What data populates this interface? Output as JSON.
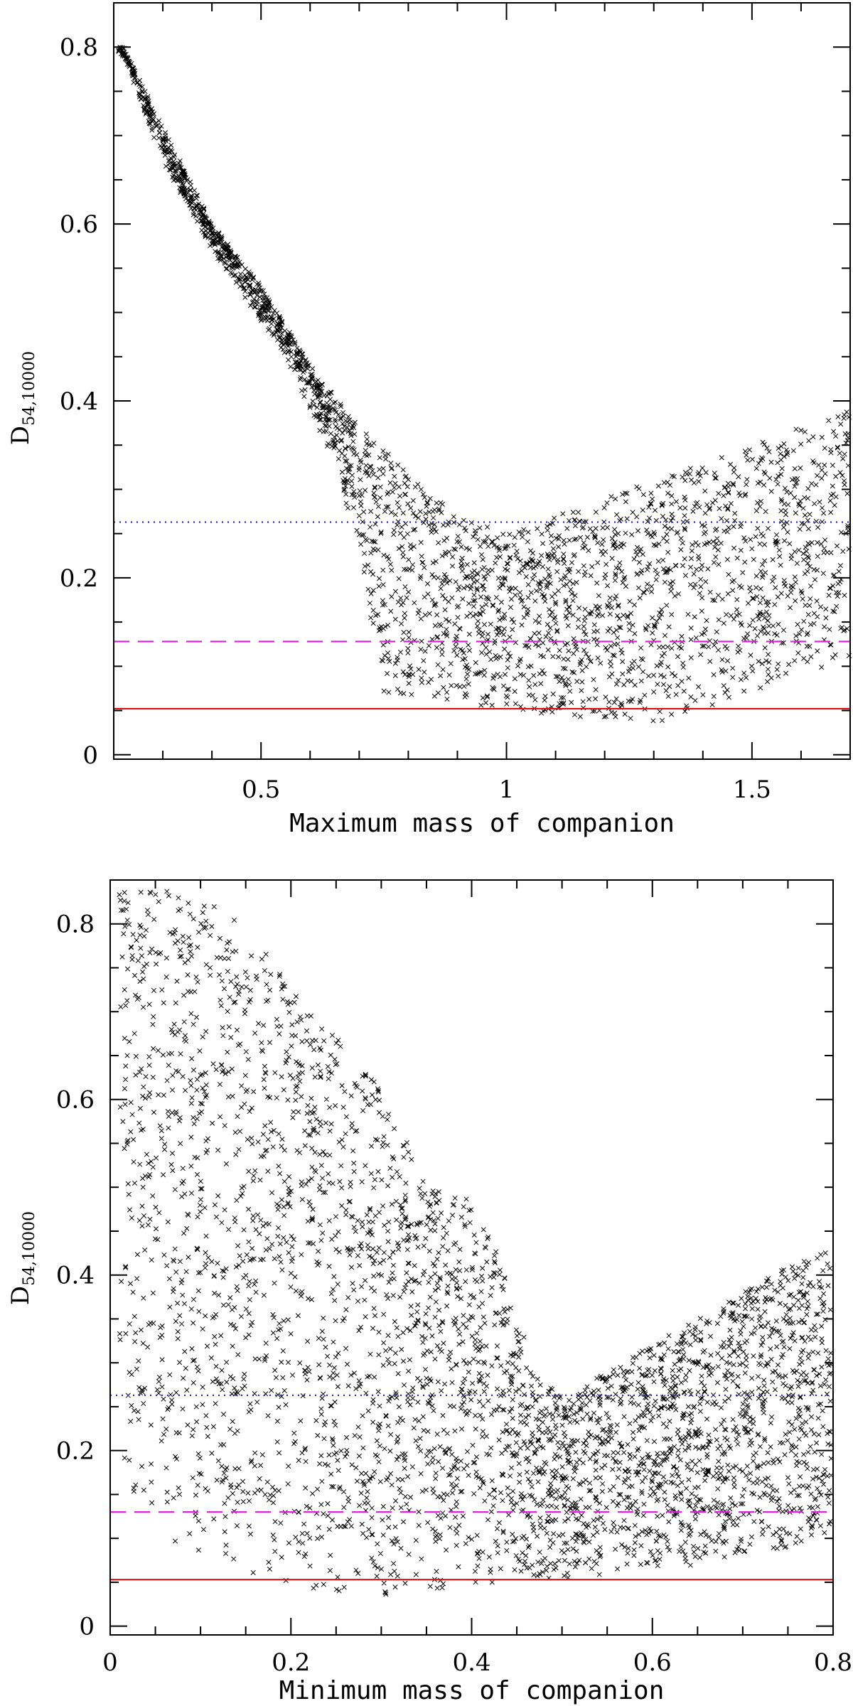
{
  "chart_data": [
    {
      "type": "scatter",
      "title": "",
      "xlabel": "Maximum mass of companion",
      "ylabel_main": "D",
      "ylabel_sub": "54,10000",
      "xlim": [
        0.2,
        1.7
      ],
      "ylim": [
        -0.005,
        0.85
      ],
      "x_ticks": [
        {
          "value": 0.5,
          "label": "0.5"
        },
        {
          "value": 1.0,
          "label": "1"
        },
        {
          "value": 1.5,
          "label": "1.5"
        }
      ],
      "x_minor_step": 0.1,
      "y_ticks": [
        {
          "value": 0.0,
          "label": "0"
        },
        {
          "value": 0.2,
          "label": "0.2"
        },
        {
          "value": 0.4,
          "label": "0.4"
        },
        {
          "value": 0.6,
          "label": "0.6"
        },
        {
          "value": 0.8,
          "label": "0.8"
        }
      ],
      "y_minor_step": 0.05,
      "hlines": [
        {
          "name": "blue-dotted",
          "y": 0.263,
          "color": "#2233cc",
          "style": "dotted"
        },
        {
          "name": "magenta-dashed",
          "y": 0.128,
          "color": "#dd22dd",
          "style": "dashed"
        },
        {
          "name": "red-solid",
          "y": 0.052,
          "color": "#dd1111",
          "style": "solid"
        }
      ],
      "scatter_envelope": {
        "upper": [
          [
            0.22,
            0.8
          ],
          [
            0.3,
            0.71
          ],
          [
            0.4,
            0.6
          ],
          [
            0.5,
            0.53
          ],
          [
            0.6,
            0.44
          ],
          [
            0.7,
            0.37
          ],
          [
            0.8,
            0.32
          ],
          [
            0.9,
            0.27
          ],
          [
            1.0,
            0.25
          ],
          [
            1.1,
            0.27
          ],
          [
            1.2,
            0.29
          ],
          [
            1.3,
            0.31
          ],
          [
            1.4,
            0.33
          ],
          [
            1.5,
            0.35
          ],
          [
            1.6,
            0.37
          ],
          [
            1.7,
            0.39
          ]
        ],
        "lower": [
          [
            0.22,
            0.79
          ],
          [
            0.3,
            0.67
          ],
          [
            0.4,
            0.57
          ],
          [
            0.5,
            0.49
          ],
          [
            0.55,
            0.45
          ],
          [
            0.65,
            0.33
          ],
          [
            0.7,
            0.23
          ],
          [
            0.75,
            0.07
          ],
          [
            0.8,
            0.06
          ],
          [
            0.9,
            0.06
          ],
          [
            1.0,
            0.05
          ],
          [
            1.1,
            0.045
          ],
          [
            1.2,
            0.04
          ],
          [
            1.3,
            0.035
          ],
          [
            1.4,
            0.05
          ],
          [
            1.5,
            0.07
          ],
          [
            1.6,
            0.09
          ],
          [
            1.7,
            0.11
          ]
        ],
        "count": 2600
      }
    },
    {
      "type": "scatter",
      "title": "",
      "xlabel": "Minimum mass of companion",
      "ylabel_main": "D",
      "ylabel_sub": "54,10000",
      "xlim": [
        0.0,
        0.8
      ],
      "ylim": [
        -0.01,
        0.85
      ],
      "x_ticks": [
        {
          "value": 0.0,
          "label": "0"
        },
        {
          "value": 0.2,
          "label": "0.2"
        },
        {
          "value": 0.4,
          "label": "0.4"
        },
        {
          "value": 0.6,
          "label": "0.6"
        },
        {
          "value": 0.8,
          "label": "0.8"
        }
      ],
      "x_minor_step": 0.05,
      "y_ticks": [
        {
          "value": 0.0,
          "label": "0"
        },
        {
          "value": 0.2,
          "label": "0.2"
        },
        {
          "value": 0.4,
          "label": "0.4"
        },
        {
          "value": 0.6,
          "label": "0.6"
        },
        {
          "value": 0.8,
          "label": "0.8"
        }
      ],
      "y_minor_step": 0.05,
      "hlines": [
        {
          "name": "blue-dotted",
          "y": 0.263,
          "color": "#2233cc",
          "style": "dotted"
        },
        {
          "name": "magenta-dashed",
          "y": 0.13,
          "color": "#dd22dd",
          "style": "dashed"
        },
        {
          "name": "red-solid",
          "y": 0.053,
          "color": "#dd1111",
          "style": "solid"
        }
      ],
      "scatter_envelope": {
        "upper": [
          [
            0.0,
            0.84
          ],
          [
            0.05,
            0.84
          ],
          [
            0.1,
            0.83
          ],
          [
            0.15,
            0.8
          ],
          [
            0.2,
            0.73
          ],
          [
            0.25,
            0.67
          ],
          [
            0.3,
            0.62
          ],
          [
            0.35,
            0.5
          ],
          [
            0.4,
            0.49
          ],
          [
            0.43,
            0.42
          ],
          [
            0.47,
            0.29
          ],
          [
            0.5,
            0.26
          ],
          [
            0.55,
            0.29
          ],
          [
            0.6,
            0.32
          ],
          [
            0.65,
            0.35
          ],
          [
            0.7,
            0.38
          ],
          [
            0.75,
            0.41
          ],
          [
            0.8,
            0.43
          ]
        ],
        "lower": [
          [
            0.0,
            0.2
          ],
          [
            0.05,
            0.1
          ],
          [
            0.1,
            0.08
          ],
          [
            0.15,
            0.06
          ],
          [
            0.2,
            0.045
          ],
          [
            0.25,
            0.03
          ],
          [
            0.3,
            0.035
          ],
          [
            0.35,
            0.04
          ],
          [
            0.4,
            0.045
          ],
          [
            0.45,
            0.05
          ],
          [
            0.5,
            0.05
          ],
          [
            0.55,
            0.06
          ],
          [
            0.6,
            0.065
          ],
          [
            0.65,
            0.07
          ],
          [
            0.7,
            0.08
          ],
          [
            0.75,
            0.09
          ],
          [
            0.8,
            0.11
          ]
        ],
        "count": 3600
      }
    }
  ]
}
